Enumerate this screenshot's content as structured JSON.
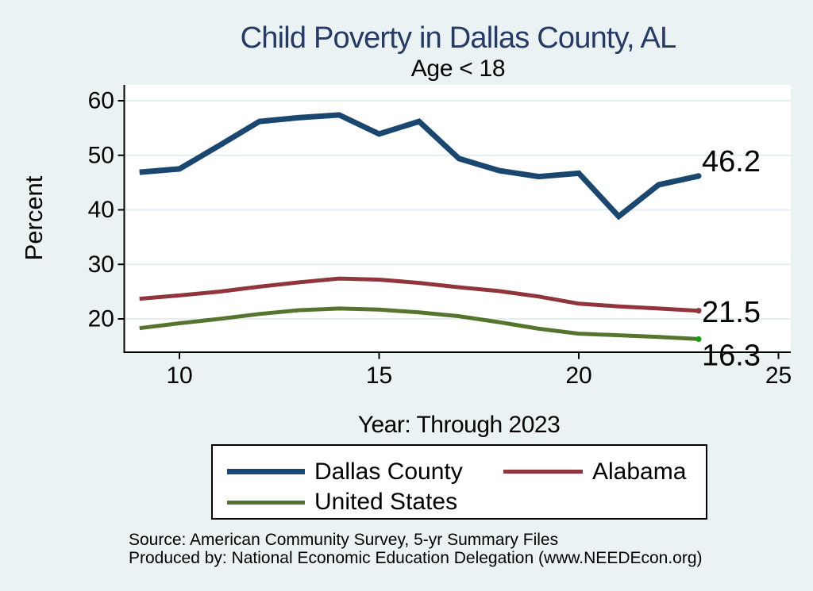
{
  "chart": {
    "title": "Child Poverty in Dallas County, AL",
    "subtitle": "Age < 18",
    "xlabel": "Year: Through 2023",
    "ylabel": "Percent",
    "source_line1": "Source: American Community Survey, 5-yr Summary Files",
    "source_line2": "Produced by: National Economic Education Delegation (www.NEEDEcon.org)"
  },
  "chart_data": {
    "type": "line",
    "x": [
      9,
      10,
      11,
      12,
      13,
      14,
      15,
      16,
      17,
      18,
      19,
      20,
      21,
      22,
      23
    ],
    "x_years": [
      2009,
      2010,
      2011,
      2012,
      2013,
      2014,
      2015,
      2016,
      2017,
      2018,
      2019,
      2020,
      2021,
      2022,
      2023
    ],
    "x_ticks": [
      10,
      15,
      20,
      25
    ],
    "y_ticks": [
      20,
      30,
      40,
      50,
      60
    ],
    "xlim": [
      8.6,
      25.3
    ],
    "ylim": [
      13.9,
      62.9
    ],
    "grid": true,
    "title": "Child Poverty in Dallas County, AL",
    "subtitle": "Age < 18",
    "xlabel": "Year: Through 2023",
    "ylabel": "Percent",
    "legend_position": "bottom-center",
    "series": [
      {
        "name": "Dallas County",
        "color": "#1a476f",
        "line_width": 7,
        "end_label": "46.2",
        "end_label_position": "above-right",
        "end_dot_color": "#1a476f",
        "values": [
          46.9,
          47.5,
          51.8,
          56.2,
          56.9,
          57.4,
          53.9,
          56.2,
          49.4,
          47.2,
          46.1,
          46.7,
          38.8,
          44.6,
          46.2
        ]
      },
      {
        "name": "Alabama",
        "color": "#90353b",
        "line_width": 5,
        "end_label": "21.5",
        "end_label_position": "right",
        "end_dot_color": "#90353b",
        "values": [
          23.7,
          24.3,
          25.0,
          25.9,
          26.7,
          27.4,
          27.2,
          26.6,
          25.8,
          25.1,
          24.1,
          22.8,
          22.3,
          21.9,
          21.5
        ]
      },
      {
        "name": "United States",
        "color": "#55752f",
        "line_width": 5,
        "end_label": "16.3",
        "end_label_position": "below-right",
        "end_dot_color": "#10a010",
        "values": [
          18.3,
          19.2,
          20.0,
          20.9,
          21.6,
          21.9,
          21.7,
          21.2,
          20.5,
          19.4,
          18.2,
          17.3,
          17.0,
          16.7,
          16.3
        ]
      }
    ]
  },
  "legend": {
    "items": [
      {
        "label": "Dallas County",
        "color": "#1a476f",
        "thickness": 7
      },
      {
        "label": "Alabama",
        "color": "#90353b",
        "thickness": 5
      },
      {
        "label": "United States",
        "color": "#55752f",
        "thickness": 5
      }
    ]
  },
  "colors": {
    "background": "#eaf2f3",
    "plot_background": "#ffffff",
    "gridline": "#e4eef0",
    "axis": "#000000",
    "title": "#253a64",
    "text": "#000000"
  }
}
